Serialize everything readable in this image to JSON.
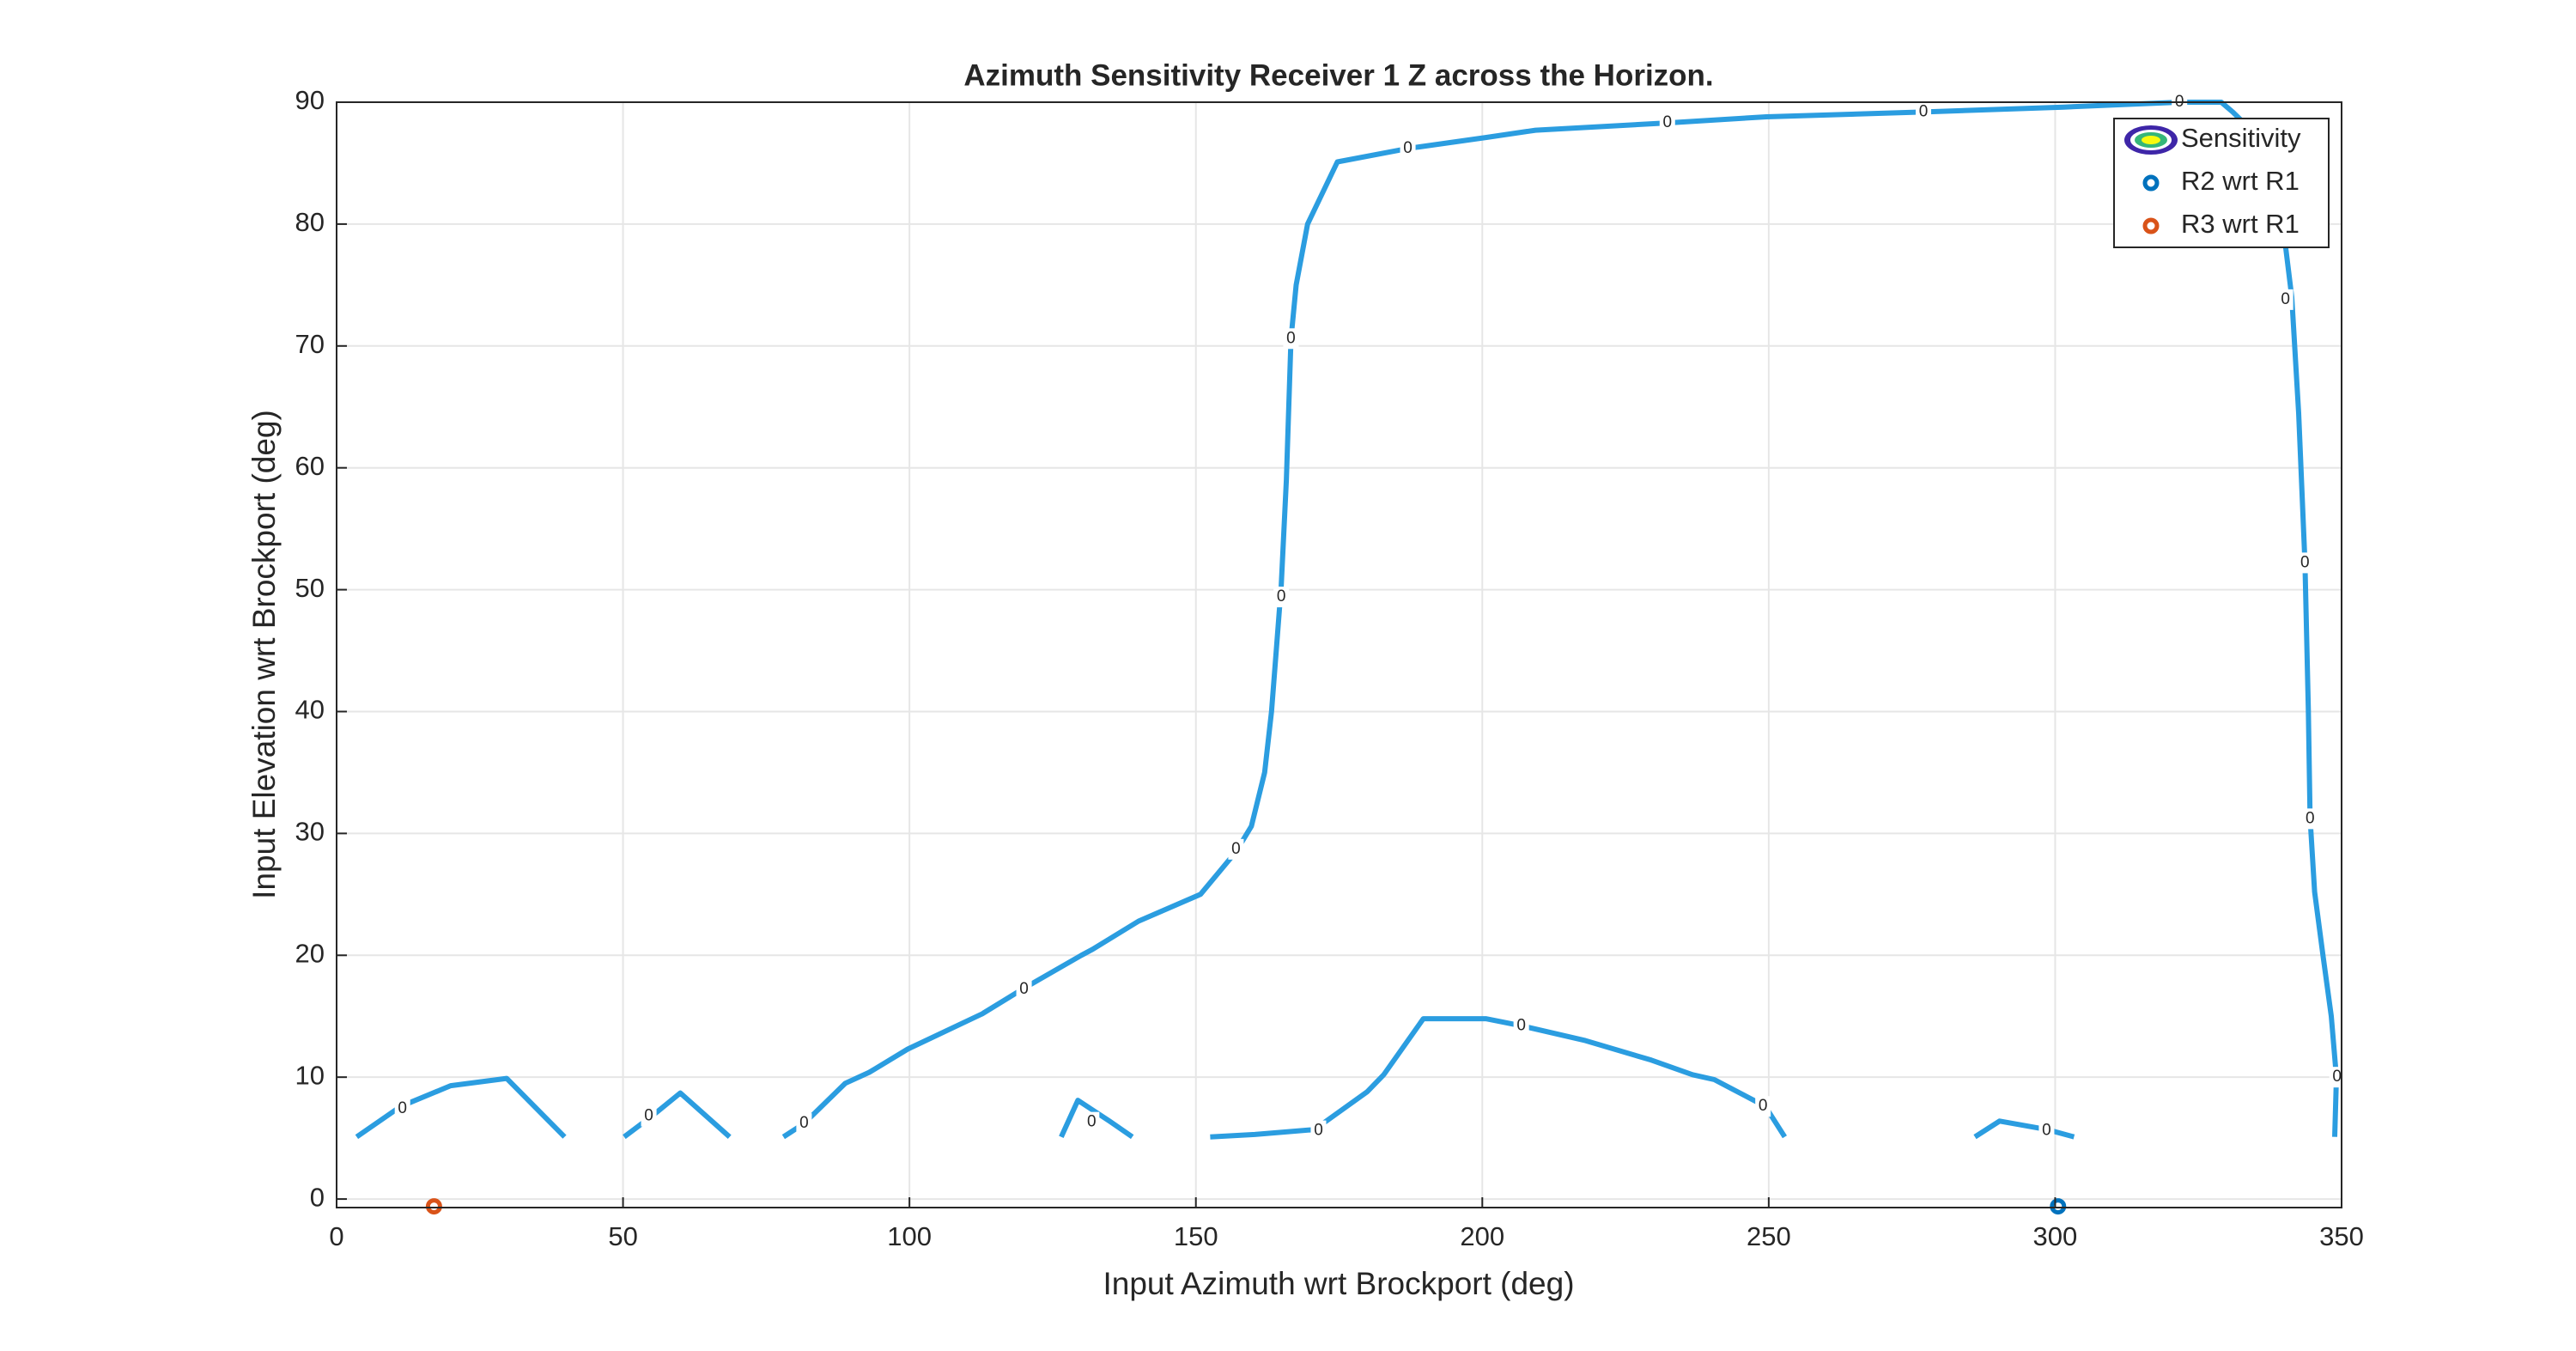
{
  "chart_data": {
    "type": "contour",
    "title": "Azimuth Sensitivity Receiver 1 Z across the Horizon.",
    "xlabel": "Input Azimuth wrt Brockport (deg)",
    "ylabel": "Input Elevation wrt Brockport (deg)",
    "xlim": [
      0,
      350
    ],
    "ylim": [
      -0.7,
      90
    ],
    "xticks": [
      0,
      50,
      100,
      150,
      200,
      250,
      300,
      350
    ],
    "yticks": [
      0,
      10,
      20,
      30,
      40,
      50,
      60,
      70,
      80,
      90
    ],
    "grid": true,
    "legend": "northeast",
    "level": 0,
    "series": [
      {
        "name": "Sensitivity",
        "type": "line",
        "color": "#2b9de0",
        "x": [
          78,
          81.6,
          88.8,
          93,
          99.7,
          112.7,
          120,
          130,
          132,
          140,
          150.8,
          157,
          159.7,
          162,
          163.2,
          164,
          164.9,
          165.8,
          166.6,
          167.5,
          169.5,
          174.7,
          187,
          200.6,
          209.3,
          232.3,
          249.6,
          277,
          301.5,
          321.7,
          329,
          331,
          334.7,
          338.4,
          339.9,
          341.3,
          342.5,
          343.6,
          344.2,
          344.5,
          345.3,
          346.8,
          348.2,
          349.1,
          348.8,
          null,
          3.5,
          11.2,
          19.9,
          29.7,
          39.8,
          null,
          50.2,
          55.3,
          60,
          68.6,
          null,
          126.5,
          129.4,
          134.9,
          138.9,
          null,
          152.5,
          160.3,
          170.7,
          179.9,
          182.8,
          189.7,
          200.6,
          207,
          218,
          229.5,
          236.7,
          240.5,
          249.4,
          252.8,
          null,
          286,
          290.3,
          298.6,
          303.3
        ],
        "y": [
          5.1,
          6.2,
          9.5,
          10.4,
          12.3,
          15.2,
          17.3,
          20,
          20.5,
          22.8,
          25,
          28.5,
          30.6,
          35,
          40,
          44.8,
          50.3,
          59,
          70.6,
          75,
          80,
          85.1,
          86.2,
          87.1,
          87.7,
          88.3,
          88.8,
          89.2,
          89.6,
          90,
          90,
          89.2,
          87.5,
          84.8,
          79.4,
          74,
          64.5,
          52.3,
          40.1,
          31.3,
          25.2,
          19.8,
          15,
          10,
          5.1,
          null,
          5.1,
          7.6,
          9.3,
          9.9,
          5.1,
          null,
          5.1,
          6.9,
          8.7,
          5.1,
          null,
          5.1,
          8.1,
          6.4,
          5.1,
          null,
          5.1,
          5.3,
          5.7,
          8.8,
          10.2,
          14.8,
          14.8,
          14.2,
          13,
          11.4,
          10.2,
          9.8,
          7.6,
          5.1,
          null,
          5.1,
          6.4,
          5.7,
          5.1
        ]
      },
      {
        "name": "R2 wrt R1",
        "type": "scatter",
        "color": "#0072bd",
        "x": [
          300.5
        ],
        "y": [
          -0.6
        ]
      },
      {
        "name": "R3 wrt R1",
        "type": "scatter",
        "color": "#d95319",
        "x": [
          17
        ],
        "y": [
          -0.6
        ]
      }
    ],
    "contour_labels": [
      {
        "x": 11.5,
        "y": 7.4
      },
      {
        "x": 54.5,
        "y": 6.8
      },
      {
        "x": 81.6,
        "y": 6.2
      },
      {
        "x": 120,
        "y": 17.2
      },
      {
        "x": 131.8,
        "y": 6.3
      },
      {
        "x": 157,
        "y": 28.7
      },
      {
        "x": 164.9,
        "y": 49.4
      },
      {
        "x": 166.6,
        "y": 70.6
      },
      {
        "x": 171.4,
        "y": 5.6
      },
      {
        "x": 187,
        "y": 86.2
      },
      {
        "x": 206.8,
        "y": 14.2
      },
      {
        "x": 232.3,
        "y": 88.3
      },
      {
        "x": 249,
        "y": 7.6
      },
      {
        "x": 277,
        "y": 89.2
      },
      {
        "x": 298.5,
        "y": 5.6
      },
      {
        "x": 321.7,
        "y": 90
      },
      {
        "x": 340.2,
        "y": 73.8
      },
      {
        "x": 343.6,
        "y": 52.2
      },
      {
        "x": 344.5,
        "y": 31.2
      },
      {
        "x": 349.2,
        "y": 10
      }
    ]
  }
}
